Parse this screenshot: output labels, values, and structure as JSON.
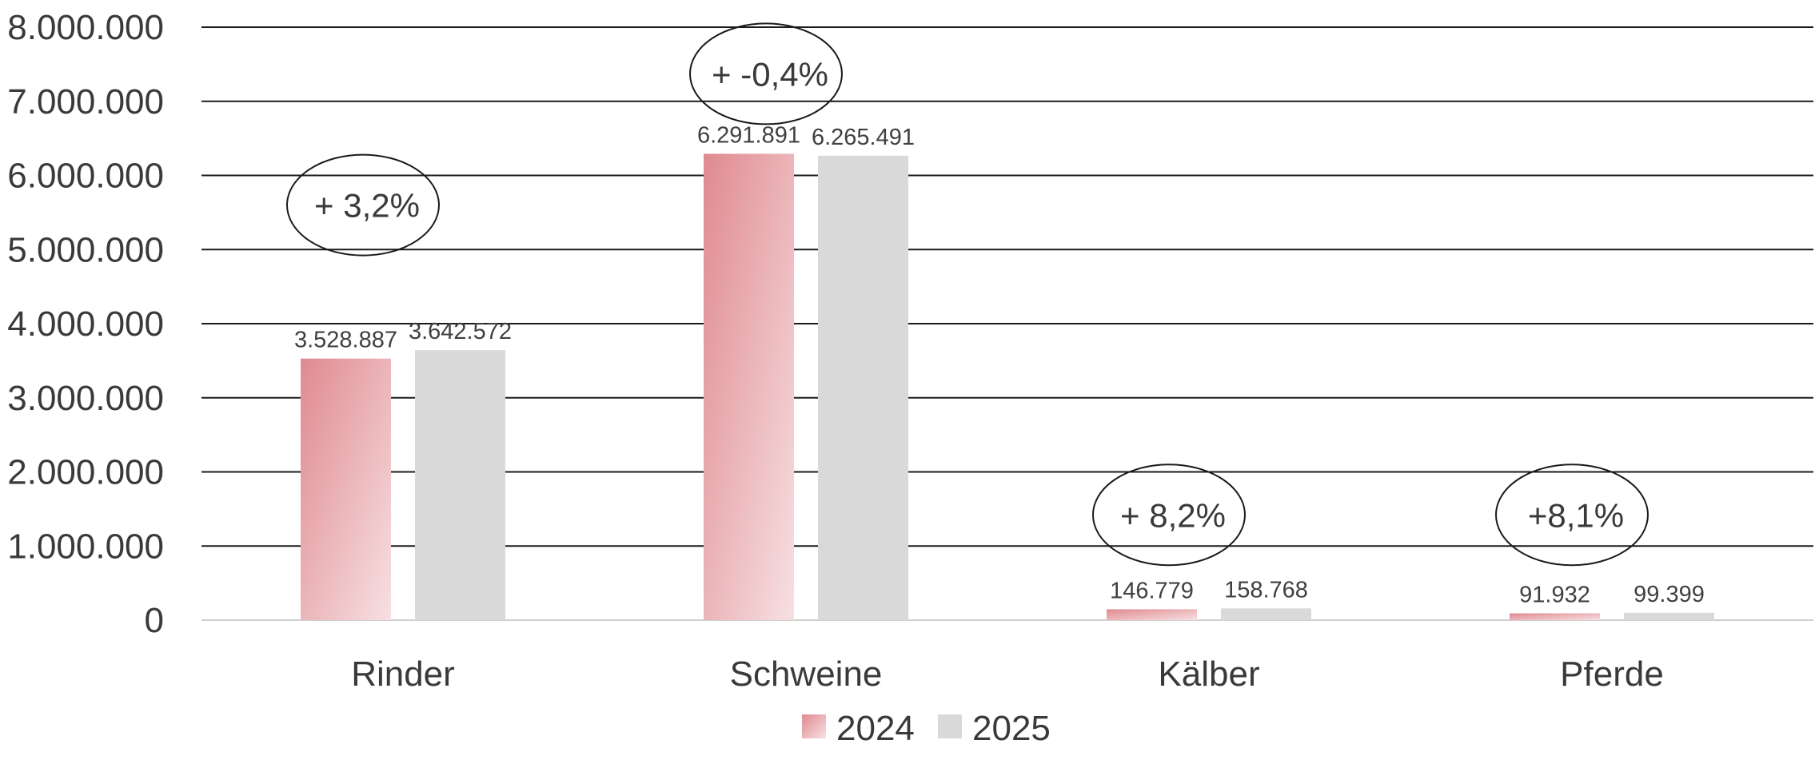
{
  "chart_data": {
    "type": "bar",
    "categories": [
      "Rinder",
      "Schweine",
      "Kälber",
      "Pferde"
    ],
    "series": [
      {
        "name": "2024",
        "values": [
          3528887,
          6291891,
          146779,
          91932
        ],
        "color": "#e08a90"
      },
      {
        "name": "2025",
        "values": [
          3642572,
          6265491,
          158768,
          99399
        ],
        "color": "#d9d9d9"
      }
    ],
    "data_labels": [
      [
        "3.528.887",
        "6.291.891",
        "146.779",
        "91.932"
      ],
      [
        "3.642.572",
        "6.265.491",
        "158.768",
        "99.399"
      ]
    ],
    "y_ticks": [
      {
        "value": 0,
        "label": "0"
      },
      {
        "value": 1000000,
        "label": "1.000.000"
      },
      {
        "value": 2000000,
        "label": "2.000.000"
      },
      {
        "value": 3000000,
        "label": "3.000.000"
      },
      {
        "value": 4000000,
        "label": "4.000.000"
      },
      {
        "value": 5000000,
        "label": "5.000.000"
      },
      {
        "value": 6000000,
        "label": "6.000.000"
      },
      {
        "value": 7000000,
        "label": "7.000.000"
      },
      {
        "value": 8000000,
        "label": "8.000.000"
      }
    ],
    "ylim": [
      0,
      8000000
    ],
    "grid": true,
    "legend_position": "bottom-center",
    "annotations": [
      {
        "category": "Rinder",
        "text": "+ 3,2%",
        "level": 5600000
      },
      {
        "category": "Schweine",
        "text": "+ -0,4%",
        "level": 7370000
      },
      {
        "category": "Kälber",
        "text": "+ 8,2%",
        "level": 1420000
      },
      {
        "category": "Pferde",
        "text": "+8,1%",
        "level": 1420000
      }
    ]
  }
}
